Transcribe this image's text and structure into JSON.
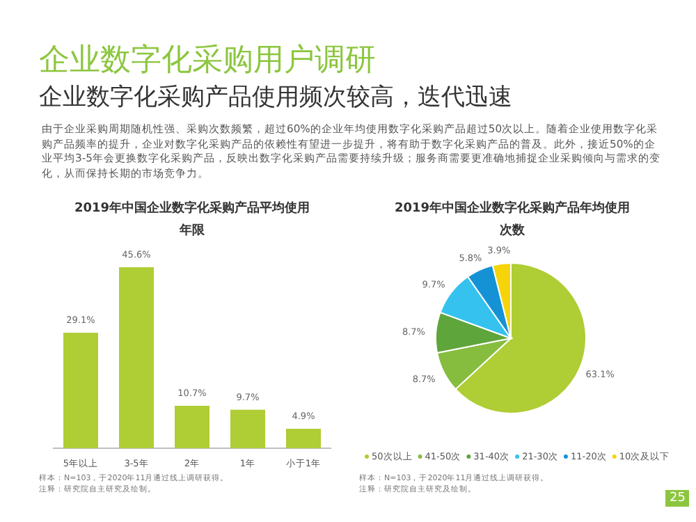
{
  "chart_data": [
    {
      "type": "other",
      "title": "企业数字化采购用户调研",
      "subtitle": "企业数字化采购产品使用频次较高，迭代迅速",
      "annotations": [
        "由于企业采购周期随机性强、采购次数频繁，超过60%的企业年均使用数字化采购产品超过50次以上。随着企业使用数字化采购产品频率的提升，企业对数字化采购产品的依赖性有望进一步提升，将有助于数字化采购产品的普及。此外，接近50%的企业平均3-5年会更换数字化采购产品，反映出数字化采购产品需要持续升级；服务商需要更准确地捕捉企业采购倾向与需求的变化，从而保持长期的市场竞争力。",
        "25"
      ]
    },
    {
      "type": "bar",
      "title": "2019年中国企业数字化采购产品平均使用年限",
      "categories": [
        "5年以上",
        "3-5年",
        "2年",
        "1年",
        "小于1年"
      ],
      "values": [
        29.1,
        45.6,
        10.7,
        9.7,
        4.9
      ],
      "value_labels": [
        "29.1%",
        "45.6%",
        "10.7%",
        "9.7%",
        "4.9%"
      ],
      "color": "#afcd34",
      "annotations": [
        "样本：N=103，于2020年11月通过线上调研获得。",
        "注释：研究院自主研究及绘制。"
      ]
    },
    {
      "type": "pie",
      "title": "2019年中国企业数字化采购产品年均使用次数",
      "categories": [
        "50次以上",
        "41-50次",
        "31-40次",
        "21-30次",
        "11-20次",
        "10次及以下"
      ],
      "values": [
        63.1,
        8.7,
        8.7,
        9.7,
        5.8,
        3.9
      ],
      "colors": [
        "#afcd34",
        "#86bd3f",
        "#5ea53b",
        "#35c2ef",
        "#1592d6",
        "#f6d40a"
      ],
      "value_labels": [
        "63.1%",
        "8.7%",
        "8.7%",
        "9.7%",
        "5.8%",
        "3.9%"
      ],
      "legend": "bottom",
      "annotations": [
        "样本：N=103，于2020年11月通过线上调研获得。",
        "注释：研究院自主研究及绘制。"
      ]
    }
  ]
}
